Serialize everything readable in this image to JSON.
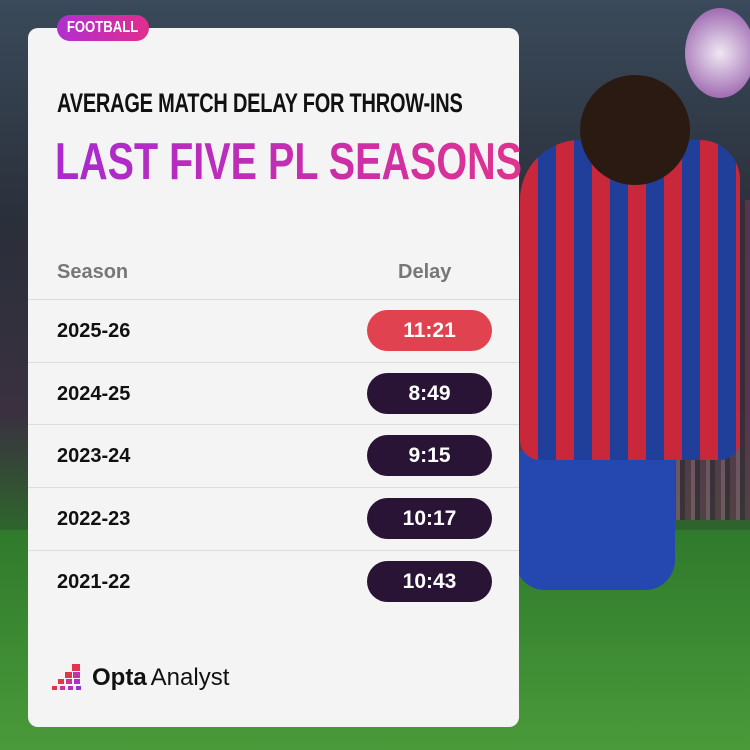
{
  "tag": "FOOTBALL",
  "title": "AVERAGE MATCH DELAY FOR THROW-INS",
  "subtitle": "LAST FIVE PL SEASONS",
  "brand": {
    "bold": "Opta",
    "regular": "Analyst"
  },
  "colors": {
    "highlight": "#e0424f",
    "default": "#2a1436",
    "accent_start": "#a82ad0",
    "accent_end": "#e03290"
  },
  "chart_data": {
    "type": "table",
    "columns": [
      "Season",
      "Delay"
    ],
    "rows": [
      {
        "season": "2025-26",
        "delay": "11:21",
        "highlight": true
      },
      {
        "season": "2024-25",
        "delay": "8:49",
        "highlight": false
      },
      {
        "season": "2023-24",
        "delay": "9:15",
        "highlight": false
      },
      {
        "season": "2022-23",
        "delay": "10:17",
        "highlight": false
      },
      {
        "season": "2021-22",
        "delay": "10:43",
        "highlight": false
      }
    ]
  }
}
